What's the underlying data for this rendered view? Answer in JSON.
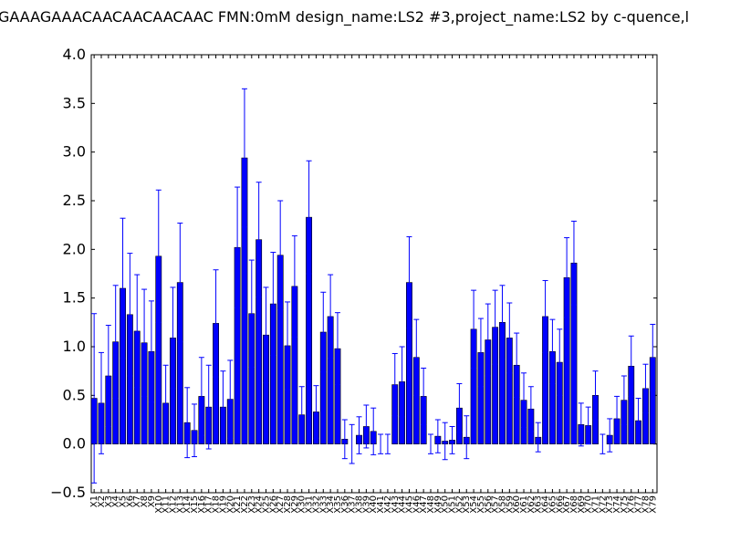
{
  "chart_data": {
    "type": "bar",
    "title": "GAAAGAAACAACAACAACAAC  FMN:0mM  design_name:LS2 #3,project_name:LS2 by c-quence,l",
    "xlabel": "",
    "ylabel": "",
    "ylim": [
      -0.5,
      4.0
    ],
    "yticks": [
      "−0.5",
      "0.0",
      "0.5",
      "1.0",
      "1.5",
      "2.0",
      "2.5",
      "3.0",
      "3.5",
      "4.0"
    ],
    "grid": false,
    "bar_color": "#0000ff",
    "error_color": "#0000ff",
    "categories": [
      "X1",
      "X2",
      "X3",
      "X4",
      "X5",
      "X6",
      "X7",
      "X8",
      "X9",
      "X10",
      "X11",
      "X12",
      "X13",
      "X14",
      "X15",
      "X16",
      "X17",
      "X18",
      "X19",
      "X20",
      "X21",
      "X22",
      "X23",
      "X24",
      "X25",
      "X26",
      "X27",
      "X28",
      "X29",
      "X30",
      "X31",
      "X32",
      "X33",
      "X34",
      "X35",
      "X36",
      "X37",
      "X38",
      "X39",
      "X40",
      "X41",
      "X42",
      "X43",
      "X44",
      "X45",
      "X46",
      "X47",
      "X48",
      "X49",
      "X50",
      "X51",
      "X52",
      "X53",
      "X54",
      "X55",
      "X56",
      "X57",
      "X58",
      "X59",
      "X60",
      "X61",
      "X62",
      "X63",
      "X64",
      "X65",
      "X66",
      "X67",
      "X68",
      "X69",
      "X70",
      "X71",
      "X72",
      "X73",
      "X74",
      "X75",
      "X76",
      "X77",
      "X78",
      "X79"
    ],
    "values": [
      0.47,
      0.42,
      0.7,
      1.05,
      1.6,
      1.33,
      1.16,
      1.04,
      0.95,
      1.93,
      0.42,
      1.09,
      1.66,
      0.22,
      0.14,
      0.49,
      0.38,
      1.24,
      0.38,
      0.46,
      2.02,
      2.94,
      1.34,
      2.1,
      1.12,
      1.44,
      1.94,
      1.01,
      1.62,
      0.3,
      2.33,
      0.33,
      1.15,
      1.31,
      0.98,
      0.05,
      0.0,
      0.09,
      0.18,
      0.13,
      0.0,
      0.0,
      0.61,
      0.64,
      1.66,
      0.89,
      0.49,
      0.0,
      0.08,
      0.03,
      0.04,
      0.37,
      0.07,
      1.18,
      0.94,
      1.07,
      1.2,
      1.25,
      1.09,
      0.81,
      0.45,
      0.36,
      0.07,
      1.31,
      0.95,
      0.84,
      1.71,
      1.86,
      0.2,
      0.19,
      0.5,
      0.0,
      0.09,
      0.26,
      0.45,
      0.8,
      0.24,
      0.57,
      0.89
    ],
    "errors": [
      0.87,
      0.52,
      0.52,
      0.58,
      0.72,
      0.63,
      0.58,
      0.55,
      0.52,
      0.68,
      0.39,
      0.52,
      0.61,
      0.36,
      0.27,
      0.4,
      0.43,
      0.55,
      0.37,
      0.4,
      0.62,
      0.71,
      0.55,
      0.59,
      0.49,
      0.53,
      0.56,
      0.45,
      0.52,
      0.29,
      0.58,
      0.27,
      0.41,
      0.43,
      0.37,
      0.2,
      0.2,
      0.19,
      0.22,
      0.24,
      0.1,
      0.1,
      0.32,
      0.36,
      0.47,
      0.39,
      0.29,
      0.1,
      0.17,
      0.19,
      0.14,
      0.25,
      0.22,
      0.4,
      0.35,
      0.37,
      0.38,
      0.38,
      0.36,
      0.33,
      0.28,
      0.23,
      0.15,
      0.37,
      0.33,
      0.34,
      0.41,
      0.43,
      0.22,
      0.19,
      0.25,
      0.1,
      0.17,
      0.23,
      0.25,
      0.31,
      0.23,
      0.25,
      0.34
    ]
  }
}
